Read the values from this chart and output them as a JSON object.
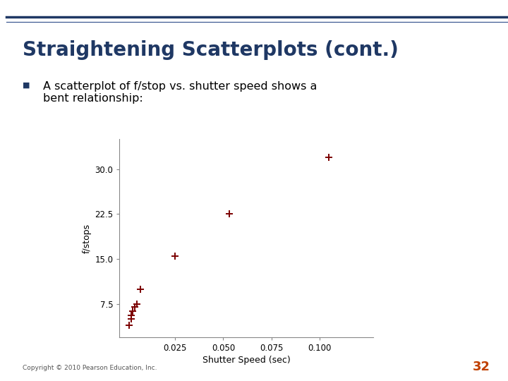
{
  "title": "Straightening Scatterplots (cont.)",
  "title_color": "#1F3864",
  "bullet_marker_color": "#1F3864",
  "bullet_text_line1": "A scatterplot of f/stop vs. shutter speed shows a",
  "bullet_text_line2": "bent relationship:",
  "shutter_speeds": [
    0.001,
    0.002,
    0.002,
    0.003,
    0.004,
    0.005,
    0.007,
    0.025,
    0.053,
    0.105
  ],
  "fstops": [
    4.0,
    5.0,
    5.6,
    6.3,
    7.1,
    7.5,
    10.0,
    15.5,
    22.5,
    32.0
  ],
  "marker_color": "#7B0000",
  "xlabel": "Shutter Speed (sec)",
  "ylabel": "f/stops",
  "xlim": [
    -0.004,
    0.128
  ],
  "ylim": [
    2.0,
    35.0
  ],
  "yticks": [
    7.5,
    15.0,
    22.5,
    30.0
  ],
  "xticks": [
    0.025,
    0.05,
    0.075,
    0.1
  ],
  "copyright": "Copyright © 2010 Pearson Education, Inc.",
  "page_number": "32",
  "bg_color": "#FFFFFF",
  "header_dark": "#1F3864",
  "header_light": "#2E4D8A",
  "left_bar_color": "#4472C4",
  "page_num_color": "#C04000"
}
